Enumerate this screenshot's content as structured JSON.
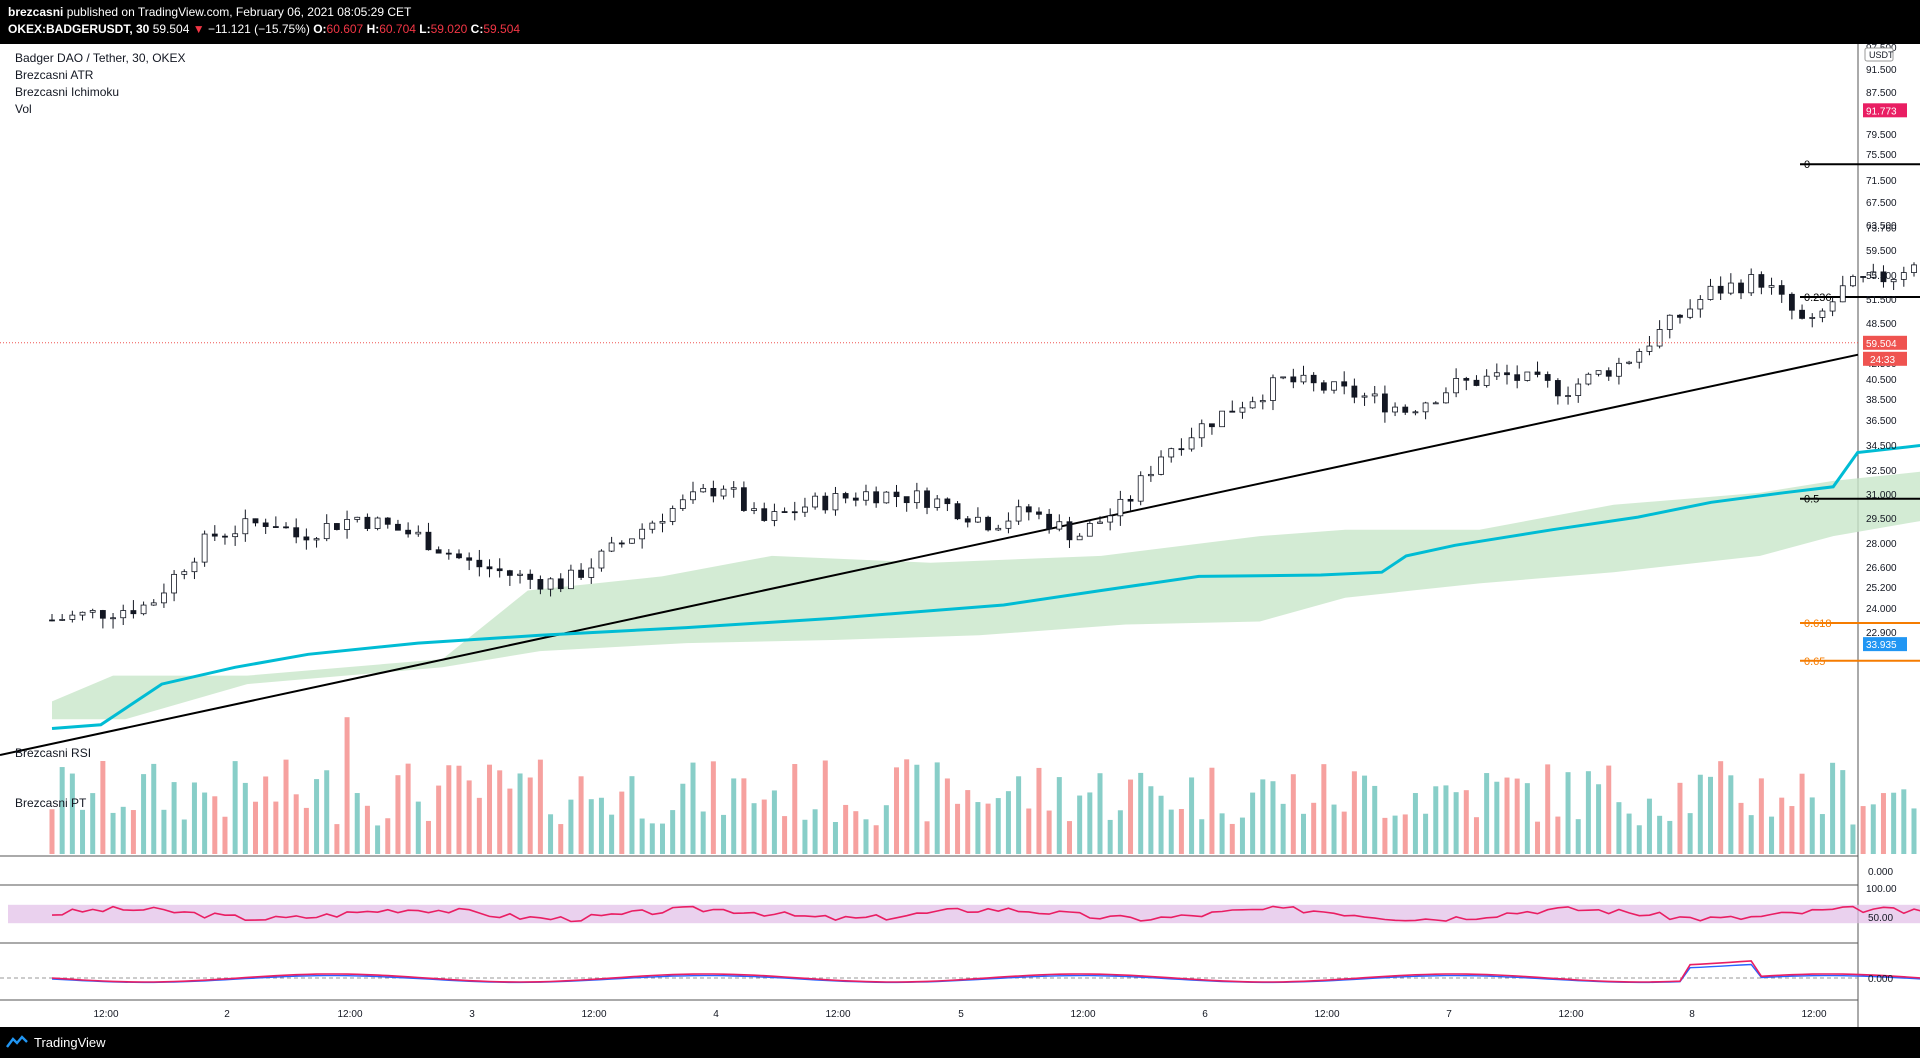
{
  "header": {
    "author": "brezcasni",
    "published_text": " published on TradingView.com, February 06, 2021 08:05:29 CET",
    "symbol": "OKEX:BADGERUSDT, 30",
    "last": "59.504",
    "arrow": "▼",
    "change": "−11.121 (−15.75%)",
    "o_label": "O:",
    "o_val": "60.607",
    "h_label": "H:",
    "h_val": "60.704",
    "l_label": "L:",
    "l_val": "59.020",
    "c_label": "C:",
    "c_val": "59.504"
  },
  "legend": {
    "title": "Badger DAO / Tether, 30, OKEX",
    "ind1": "Brezcasni ATR",
    "ind2": "Brezcasni Ichimoku",
    "ind3": "Vol"
  },
  "panes": {
    "rsi_label": "Brezcasni RSI",
    "pt_label": "Brezcasni PT"
  },
  "footer": {
    "brand": "TradingView"
  },
  "colors": {
    "up": "#26a69a",
    "down": "#ef5350",
    "kijun": "#00bcd4",
    "cloud": "#c8e6c9",
    "stop_zone": "#f8bbd0",
    "target_zone": "#bbdefb",
    "fib_black": "#000000",
    "fib_orange": "#f57c00",
    "rsi": "#e91e63"
  },
  "chart_data": {
    "type": "candlestick",
    "symbol": "OKEX:BADGERUSDT",
    "interval": "30",
    "price_axis": {
      "unit": "USDT",
      "ticks": [
        "97.500",
        "91.500",
        "87.500",
        "83.500",
        "79.500",
        "75.500",
        "71.500",
        "67.500",
        "63.500",
        "59.500",
        "55.500",
        "51.500",
        "48.500",
        "45.500",
        "42.500",
        "40.500",
        "38.500",
        "36.500",
        "34.500",
        "32.500",
        "31.000",
        "29.500",
        "28.000",
        "26.600",
        "25.200",
        "24.000",
        "22.900"
      ],
      "range": [
        22.9,
        100.5
      ]
    },
    "time_axis": {
      "ticks": [
        "12:00",
        "2",
        "12:00",
        "3",
        "12:00",
        "4",
        "12:00",
        "5",
        "12:00",
        "6",
        "12:00",
        "7",
        "12:00",
        "8",
        "12:00"
      ]
    },
    "price_labels": {
      "stop": "91.773",
      "entry": "73.760",
      "last": "59.504",
      "countdown": "24:33",
      "target": "33.935"
    },
    "fib_levels": [
      {
        "label": "0",
        "price": 83.0
      },
      {
        "label": "0.236",
        "price": 64.8
      },
      {
        "label": "0.5",
        "price": 44.5
      },
      {
        "label": "0.618",
        "price": 35.3
      },
      {
        "label": "0.65",
        "price": 32.9
      }
    ],
    "position": {
      "stop": 91.773,
      "entry": 73.76,
      "target": 33.935
    },
    "trendline": {
      "from_price": 27.6,
      "to_price": 58.2
    },
    "close_path": [
      {
        "x": 0.0,
        "p": 35.5
      },
      {
        "x": 0.4,
        "p": 36.5
      },
      {
        "x": 0.65,
        "p": 41.5
      },
      {
        "x": 0.9,
        "p": 42.8
      },
      {
        "x": 1.0,
        "p": 41.5
      },
      {
        "x": 1.25,
        "p": 43.0
      },
      {
        "x": 1.5,
        "p": 41.5
      },
      {
        "x": 1.7,
        "p": 39.5
      },
      {
        "x": 1.95,
        "p": 38.3
      },
      {
        "x": 2.1,
        "p": 38.0
      },
      {
        "x": 2.3,
        "p": 40.5
      },
      {
        "x": 2.5,
        "p": 43.2
      },
      {
        "x": 2.75,
        "p": 45.7
      },
      {
        "x": 2.9,
        "p": 42.5
      },
      {
        "x": 3.1,
        "p": 44.0
      },
      {
        "x": 3.35,
        "p": 45.0
      },
      {
        "x": 3.6,
        "p": 44.5
      },
      {
        "x": 3.85,
        "p": 42.5
      },
      {
        "x": 4.0,
        "p": 43.5
      },
      {
        "x": 4.2,
        "p": 41.5
      },
      {
        "x": 4.4,
        "p": 44.0
      },
      {
        "x": 4.55,
        "p": 48.5
      },
      {
        "x": 4.75,
        "p": 51.5
      },
      {
        "x": 5.05,
        "p": 55.5
      },
      {
        "x": 5.35,
        "p": 54.0
      },
      {
        "x": 5.55,
        "p": 52.5
      },
      {
        "x": 5.75,
        "p": 55.0
      },
      {
        "x": 5.95,
        "p": 56.0
      },
      {
        "x": 6.2,
        "p": 54.5
      },
      {
        "x": 6.45,
        "p": 57.5
      },
      {
        "x": 6.8,
        "p": 65.5
      },
      {
        "x": 7.0,
        "p": 67.0
      },
      {
        "x": 7.2,
        "p": 61.0
      },
      {
        "x": 7.35,
        "p": 66.0
      },
      {
        "x": 7.55,
        "p": 67.5
      },
      {
        "x": 7.8,
        "p": 73.5
      },
      {
        "x": 8.05,
        "p": 75.5
      },
      {
        "x": 8.25,
        "p": 79.5
      },
      {
        "x": 8.45,
        "p": 82.0
      },
      {
        "x": 8.65,
        "p": 78.0
      },
      {
        "x": 8.9,
        "p": 73.0
      },
      {
        "x": 9.1,
        "p": 72.0
      },
      {
        "x": 9.35,
        "p": 73.0
      },
      {
        "x": 9.55,
        "p": 73.5
      },
      {
        "x": 9.75,
        "p": 70.5
      },
      {
        "x": 9.9,
        "p": 66.5
      },
      {
        "x": 10.1,
        "p": 67.5
      },
      {
        "x": 10.3,
        "p": 66.0
      },
      {
        "x": 10.5,
        "p": 68.0
      },
      {
        "x": 10.65,
        "p": 63.5
      },
      {
        "x": 10.8,
        "p": 60.0
      },
      {
        "x": 11.0,
        "p": 61.0
      },
      {
        "x": 11.2,
        "p": 61.5
      },
      {
        "x": 11.35,
        "p": 59.5
      }
    ],
    "kijun": [
      {
        "x": 0.0,
        "p": 29.0
      },
      {
        "x": 0.2,
        "p": 29.2
      },
      {
        "x": 0.45,
        "p": 31.5
      },
      {
        "x": 0.75,
        "p": 32.5
      },
      {
        "x": 1.05,
        "p": 33.3
      },
      {
        "x": 1.5,
        "p": 34.0
      },
      {
        "x": 2.0,
        "p": 34.5
      },
      {
        "x": 2.6,
        "p": 35.0
      },
      {
        "x": 3.2,
        "p": 35.6
      },
      {
        "x": 3.9,
        "p": 36.5
      },
      {
        "x": 4.3,
        "p": 37.5
      },
      {
        "x": 4.7,
        "p": 38.5
      },
      {
        "x": 5.2,
        "p": 38.6
      },
      {
        "x": 5.45,
        "p": 38.8
      },
      {
        "x": 5.55,
        "p": 40.0
      },
      {
        "x": 5.75,
        "p": 40.8
      },
      {
        "x": 6.15,
        "p": 42.0
      },
      {
        "x": 6.5,
        "p": 43.0
      },
      {
        "x": 6.8,
        "p": 44.2
      },
      {
        "x": 7.1,
        "p": 45.0
      },
      {
        "x": 7.3,
        "p": 45.5
      },
      {
        "x": 7.4,
        "p": 48.5
      },
      {
        "x": 7.8,
        "p": 49.5
      },
      {
        "x": 8.2,
        "p": 50.7
      },
      {
        "x": 8.4,
        "p": 51.5
      },
      {
        "x": 8.55,
        "p": 54.0
      },
      {
        "x": 8.75,
        "p": 56.5
      },
      {
        "x": 9.1,
        "p": 58.0
      },
      {
        "x": 9.5,
        "p": 59.5
      },
      {
        "x": 10.0,
        "p": 60.5
      },
      {
        "x": 10.6,
        "p": 61.5
      },
      {
        "x": 10.9,
        "p": 62.5
      },
      {
        "x": 11.3,
        "p": 62.0
      }
    ],
    "cloud_upper": [
      {
        "x": 0.0,
        "p": 30.5
      },
      {
        "x": 0.25,
        "p": 32.0
      },
      {
        "x": 0.8,
        "p": 32.0
      },
      {
        "x": 1.6,
        "p": 33.0
      },
      {
        "x": 1.95,
        "p": 37.5
      },
      {
        "x": 2.5,
        "p": 38.5
      },
      {
        "x": 2.95,
        "p": 40.0
      },
      {
        "x": 3.6,
        "p": 39.5
      },
      {
        "x": 4.3,
        "p": 40.0
      },
      {
        "x": 4.95,
        "p": 41.5
      },
      {
        "x": 5.3,
        "p": 42.0
      },
      {
        "x": 5.85,
        "p": 42.0
      },
      {
        "x": 6.4,
        "p": 44.0
      },
      {
        "x": 7.0,
        "p": 45.0
      },
      {
        "x": 7.3,
        "p": 46.0
      },
      {
        "x": 7.75,
        "p": 47.0
      },
      {
        "x": 8.3,
        "p": 48.5
      },
      {
        "x": 8.5,
        "p": 52.5
      },
      {
        "x": 8.9,
        "p": 56.0
      },
      {
        "x": 9.3,
        "p": 56.5
      },
      {
        "x": 10.0,
        "p": 62.5
      },
      {
        "x": 10.6,
        "p": 67.5
      },
      {
        "x": 11.2,
        "p": 69.0
      },
      {
        "x": 11.55,
        "p": 70.0
      },
      {
        "x": 11.8,
        "p": 70.5
      },
      {
        "x": 12.1,
        "p": 66.0
      },
      {
        "x": 12.35,
        "p": 65.5
      },
      {
        "x": 12.45,
        "p": 62.5
      }
    ],
    "cloud_lower": [
      {
        "x": 0.0,
        "p": 29.5
      },
      {
        "x": 0.3,
        "p": 29.5
      },
      {
        "x": 0.8,
        "p": 31.5
      },
      {
        "x": 1.6,
        "p": 32.5
      },
      {
        "x": 2.0,
        "p": 33.5
      },
      {
        "x": 2.6,
        "p": 34.0
      },
      {
        "x": 3.2,
        "p": 34.2
      },
      {
        "x": 3.8,
        "p": 34.5
      },
      {
        "x": 4.4,
        "p": 35.2
      },
      {
        "x": 4.95,
        "p": 35.4
      },
      {
        "x": 5.3,
        "p": 37.0
      },
      {
        "x": 5.85,
        "p": 38.0
      },
      {
        "x": 6.4,
        "p": 38.8
      },
      {
        "x": 7.0,
        "p": 40.0
      },
      {
        "x": 7.3,
        "p": 41.5
      },
      {
        "x": 7.75,
        "p": 43.0
      },
      {
        "x": 8.0,
        "p": 44.0
      },
      {
        "x": 8.3,
        "p": 45.5
      },
      {
        "x": 8.5,
        "p": 47.5
      },
      {
        "x": 8.9,
        "p": 48.5
      },
      {
        "x": 9.3,
        "p": 51.5
      },
      {
        "x": 9.7,
        "p": 55.0
      },
      {
        "x": 10.0,
        "p": 56.5
      },
      {
        "x": 10.6,
        "p": 58.5
      },
      {
        "x": 11.2,
        "p": 60.5
      },
      {
        "x": 11.8,
        "p": 61.0
      },
      {
        "x": 12.45,
        "p": 62.5
      }
    ],
    "volume_spikes": [
      {
        "x": 1.2,
        "v": 0.72,
        "up": false
      },
      {
        "x": 8.05,
        "v": 0.68,
        "up": true
      },
      {
        "x": 8.85,
        "v": 1.0,
        "up": false
      },
      {
        "x": 9.35,
        "v": 0.85,
        "up": true
      },
      {
        "x": 10.15,
        "v": 0.58,
        "up": false
      },
      {
        "x": 10.95,
        "v": 0.72,
        "up": false
      },
      {
        "x": 11.1,
        "v": 0.78,
        "up": false
      }
    ],
    "rsi": {
      "band_top": 70,
      "band_bottom": 30,
      "ticks": [
        "100.00",
        "50.00"
      ]
    },
    "pt": {
      "ticks": [
        "0.000"
      ]
    },
    "vol_pane_tick": "0.000"
  }
}
